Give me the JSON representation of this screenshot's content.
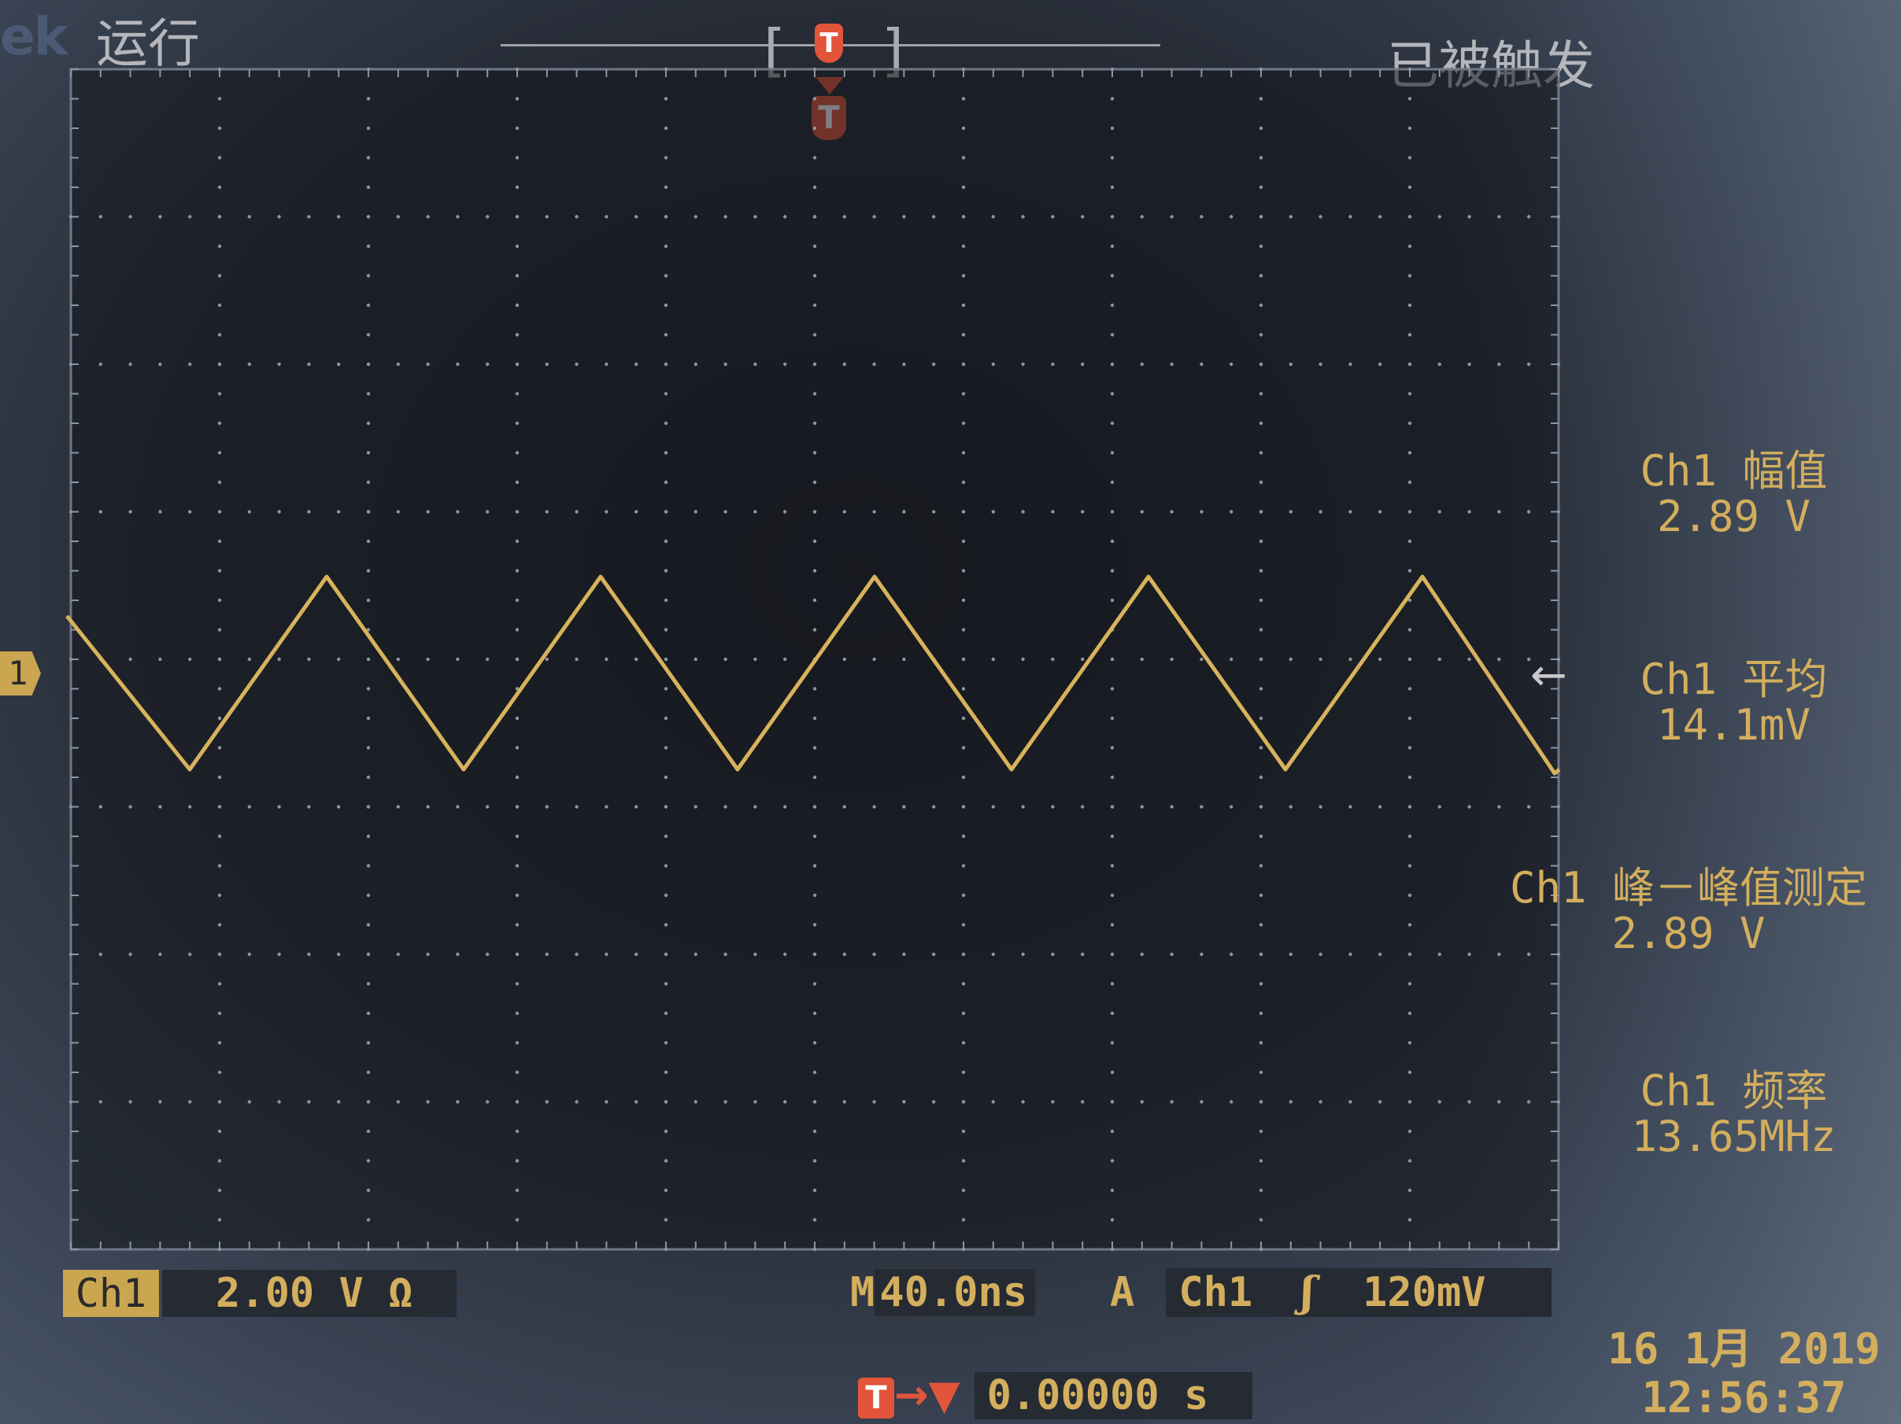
{
  "header": {
    "logo_text": "ek",
    "run_state": "运行",
    "trigger_state": "已被触发",
    "trigger_marker": "T"
  },
  "channel_marker": "1",
  "measurements": [
    {
      "label": "Ch1 幅值",
      "value": "2.89 V"
    },
    {
      "label": "Ch1 平均",
      "value": "14.1mV"
    },
    {
      "label": "Ch1 峰－峰值测定",
      "value": "2.89 V"
    },
    {
      "label": "Ch1 频率",
      "value": "13.65MHz"
    }
  ],
  "status_bar": {
    "channel": "Ch1",
    "volts_per_div": "2.00 V Ω",
    "timebase_prefix": "M",
    "timebase": "40.0ns",
    "trigger_mode": "A",
    "trigger_source": "Ch1",
    "trigger_slope_icon": "rising-edge-icon",
    "trigger_slope_glyph": "ʃ",
    "trigger_level": "120mV"
  },
  "trigger_position": {
    "marker": "T",
    "arrow": "→▼",
    "value": "0.00000 s"
  },
  "datetime": {
    "date": "16 1月  2019",
    "time": "12:56:37"
  },
  "colors": {
    "trace": "#d8b25c",
    "text": "#d3ae5d",
    "trigger": "#e2553b",
    "screen": "#1f232b"
  },
  "waveform": {
    "type": "triangle",
    "frequency": "13.65MHz",
    "cycles_visible": 5.5
  }
}
